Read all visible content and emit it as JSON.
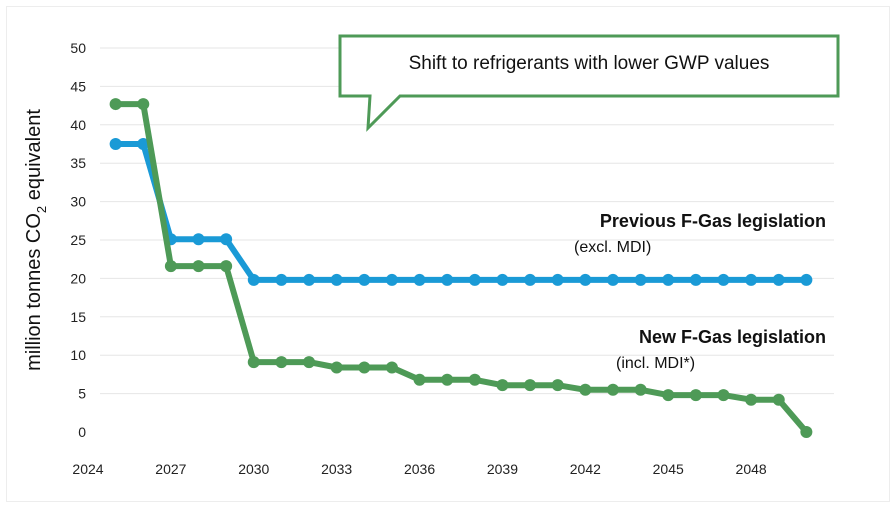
{
  "chart_data": {
    "type": "line",
    "ylabel_prefix": "million tonnes CO",
    "ylabel_sub": "2",
    "ylabel_suffix": " equivalent",
    "ylim": [
      0,
      50
    ],
    "y_ticks": [
      "0",
      "5",
      "10",
      "15",
      "20",
      "25",
      "30",
      "35",
      "40",
      "45",
      "50"
    ],
    "x_ticks": [
      "2024",
      "2027",
      "2030",
      "2033",
      "2036",
      "2039",
      "2042",
      "2045",
      "2048"
    ],
    "grid": "horizontal",
    "x": [
      2025,
      2026,
      2027,
      2028,
      2029,
      2030,
      2031,
      2032,
      2033,
      2034,
      2035,
      2036,
      2037,
      2038,
      2039,
      2040,
      2041,
      2042,
      2043,
      2044,
      2045,
      2046,
      2047,
      2048,
      2049,
      2050
    ],
    "series": [
      {
        "name": "Previous F-Gas legislation",
        "color": "#1a9ad6",
        "values": [
          37.5,
          37.5,
          25.1,
          25.1,
          25.1,
          19.8,
          19.8,
          19.8,
          19.8,
          19.8,
          19.8,
          19.8,
          19.8,
          19.8,
          19.8,
          19.8,
          19.8,
          19.8,
          19.8,
          19.8,
          19.8,
          19.8,
          19.8,
          19.8,
          19.8,
          19.8
        ]
      },
      {
        "name": "New F-Gas legislation",
        "color": "#4e9a57",
        "values": [
          42.7,
          42.7,
          21.6,
          21.6,
          21.6,
          9.1,
          9.1,
          9.1,
          8.4,
          8.4,
          8.4,
          6.8,
          6.8,
          6.8,
          6.1,
          6.1,
          6.1,
          5.5,
          5.5,
          5.5,
          4.8,
          4.8,
          4.8,
          4.2,
          4.2,
          0.0
        ]
      }
    ],
    "annotations": {
      "previous_title": "Previous F-Gas legislation",
      "previous_sub": "(excl. MDI)",
      "new_title": "New F-Gas legislation",
      "new_sub": "(incl. MDI*)",
      "callout": "Shift to refrigerants with lower GWP values"
    }
  }
}
